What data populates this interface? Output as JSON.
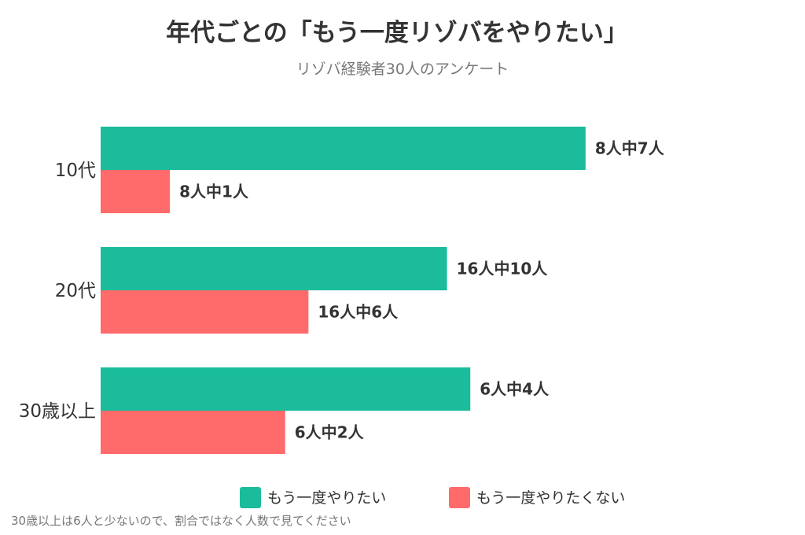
{
  "colors": {
    "series1": "#1abc9c",
    "series2": "#ff6b6b"
  },
  "footnote": "30歳以上は6人と少ないので、割合ではなく人数で見てください",
  "chart_data": {
    "type": "bar",
    "orientation": "horizontal",
    "title": "年代ごとの「もう一度リゾバをやりたい」",
    "subtitle": "リゾバ経験者30人のアンケート",
    "xlabel": "",
    "ylabel": "",
    "grid": false,
    "legend": "bottom-center",
    "categories": [
      "10代",
      "20代",
      "30歳以上"
    ],
    "series": [
      {
        "name": "もう一度やりたい",
        "color": "#1abc9c",
        "values": [
          87.5,
          62.5,
          66.7
        ],
        "labels": [
          "8人中7人",
          "16人中10人",
          "6人中4人"
        ]
      },
      {
        "name": "もう一度やりたくない",
        "color": "#ff6b6b",
        "values": [
          12.5,
          37.5,
          33.3
        ],
        "labels": [
          "8人中1人",
          "16人中6人",
          "6人中2人"
        ]
      }
    ],
    "xlim": [
      0,
      100
    ]
  }
}
